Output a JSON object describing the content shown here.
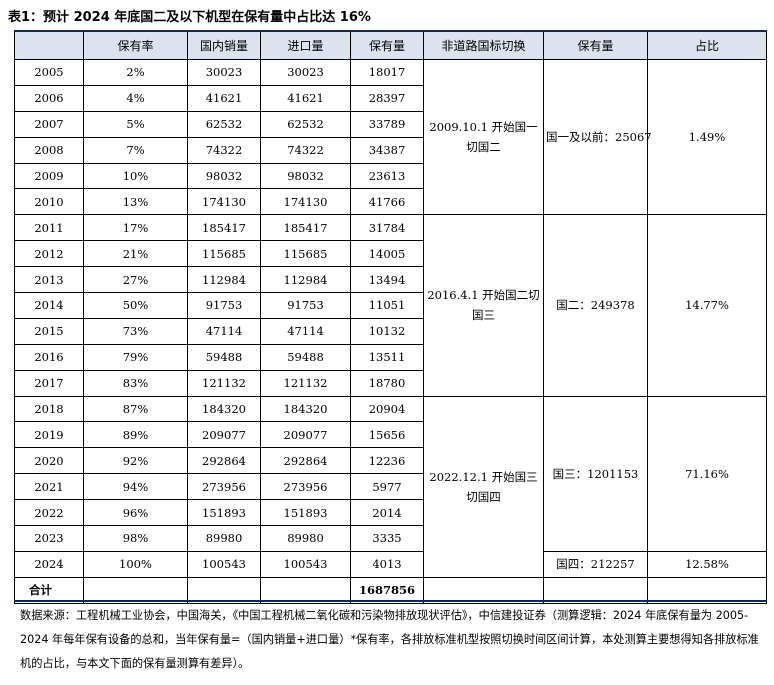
{
  "title": "表1：预计 2024 年底国二及以下机型在保有量中占比达 16%",
  "headers": [
    "",
    "保有率",
    "国内销量",
    "进口量",
    "保有量",
    "非道路国标切换",
    "保有量",
    "占比"
  ],
  "rows": [
    {
      "year": "2005",
      "rate": "2%",
      "domestic": "30023",
      "import": "30023",
      "holding": "18017"
    },
    {
      "year": "2006",
      "rate": "4%",
      "domestic": "41621",
      "import": "41621",
      "holding": "28397"
    },
    {
      "year": "2007",
      "rate": "5%",
      "domestic": "62532",
      "import": "62532",
      "holding": "33789"
    },
    {
      "year": "2008",
      "rate": "7%",
      "domestic": "74322",
      "import": "74322",
      "holding": "34387"
    },
    {
      "year": "2009",
      "rate": "10%",
      "domestic": "98032",
      "import": "98032",
      "holding": "23613"
    },
    {
      "year": "2010",
      "rate": "13%",
      "domestic": "174130",
      "import": "174130",
      "holding": "41766"
    },
    {
      "year": "2011",
      "rate": "17%",
      "domestic": "185417",
      "import": "185417",
      "holding": "31784"
    },
    {
      "year": "2012",
      "rate": "21%",
      "domestic": "115685",
      "import": "115685",
      "holding": "14005"
    },
    {
      "year": "2013",
      "rate": "27%",
      "domestic": "112984",
      "import": "112984",
      "holding": "13494"
    },
    {
      "year": "2014",
      "rate": "50%",
      "domestic": "91753",
      "import": "91753",
      "holding": "11051"
    },
    {
      "year": "2015",
      "rate": "73%",
      "domestic": "47114",
      "import": "47114",
      "holding": "10132"
    },
    {
      "year": "2016",
      "rate": "79%",
      "domestic": "59488",
      "import": "59488",
      "holding": "13511"
    },
    {
      "year": "2017",
      "rate": "83%",
      "domestic": "121132",
      "import": "121132",
      "holding": "18780"
    },
    {
      "year": "2018",
      "rate": "87%",
      "domestic": "184320",
      "import": "184320",
      "holding": "20904"
    },
    {
      "year": "2019",
      "rate": "89%",
      "domestic": "209077",
      "import": "209077",
      "holding": "15656"
    },
    {
      "year": "2020",
      "rate": "92%",
      "domestic": "292864",
      "import": "292864",
      "holding": "12236"
    },
    {
      "year": "2021",
      "rate": "94%",
      "domestic": "273956",
      "import": "273956",
      "holding": "5977"
    },
    {
      "year": "2022",
      "rate": "96%",
      "domestic": "151893",
      "import": "151893",
      "holding": "2014"
    },
    {
      "year": "2023",
      "rate": "98%",
      "domestic": "89980",
      "import": "89980",
      "holding": "3335"
    },
    {
      "year": "2024",
      "rate": "100%",
      "domestic": "100543",
      "import": "100543",
      "holding": "4013"
    }
  ],
  "groups": [
    {
      "switch": "2009.10.1 开始国一切国二",
      "stock": "国一及以前：25067",
      "share": "1.49%"
    },
    {
      "switch": "2016.4.1 开始国二切国三",
      "stock": "国二：249378",
      "share": "14.77%"
    },
    {
      "switch": "2022.12.1 开始国三切国四",
      "stock": "国三：1201153",
      "share": "71.16%"
    },
    {
      "stock": "国四：212257",
      "share": "12.58%"
    }
  ],
  "total": {
    "label": "合计",
    "holding": "1687856"
  },
  "note": "数据来源：工程机械工业协会，中国海关，《中国工程机械二氧化碳和污染物排放现状评估》，中信建投证券（测算逻辑：2024 年底保有量为 2005-2024 年每年保有设备的总和，当年保有量=（国内销量+进口量）*保有率，各排放标准机型按照切换时间区间计算，本处测算主要想得知各排放标准机的占比，与本文下面的保有量测算有差异）。"
}
